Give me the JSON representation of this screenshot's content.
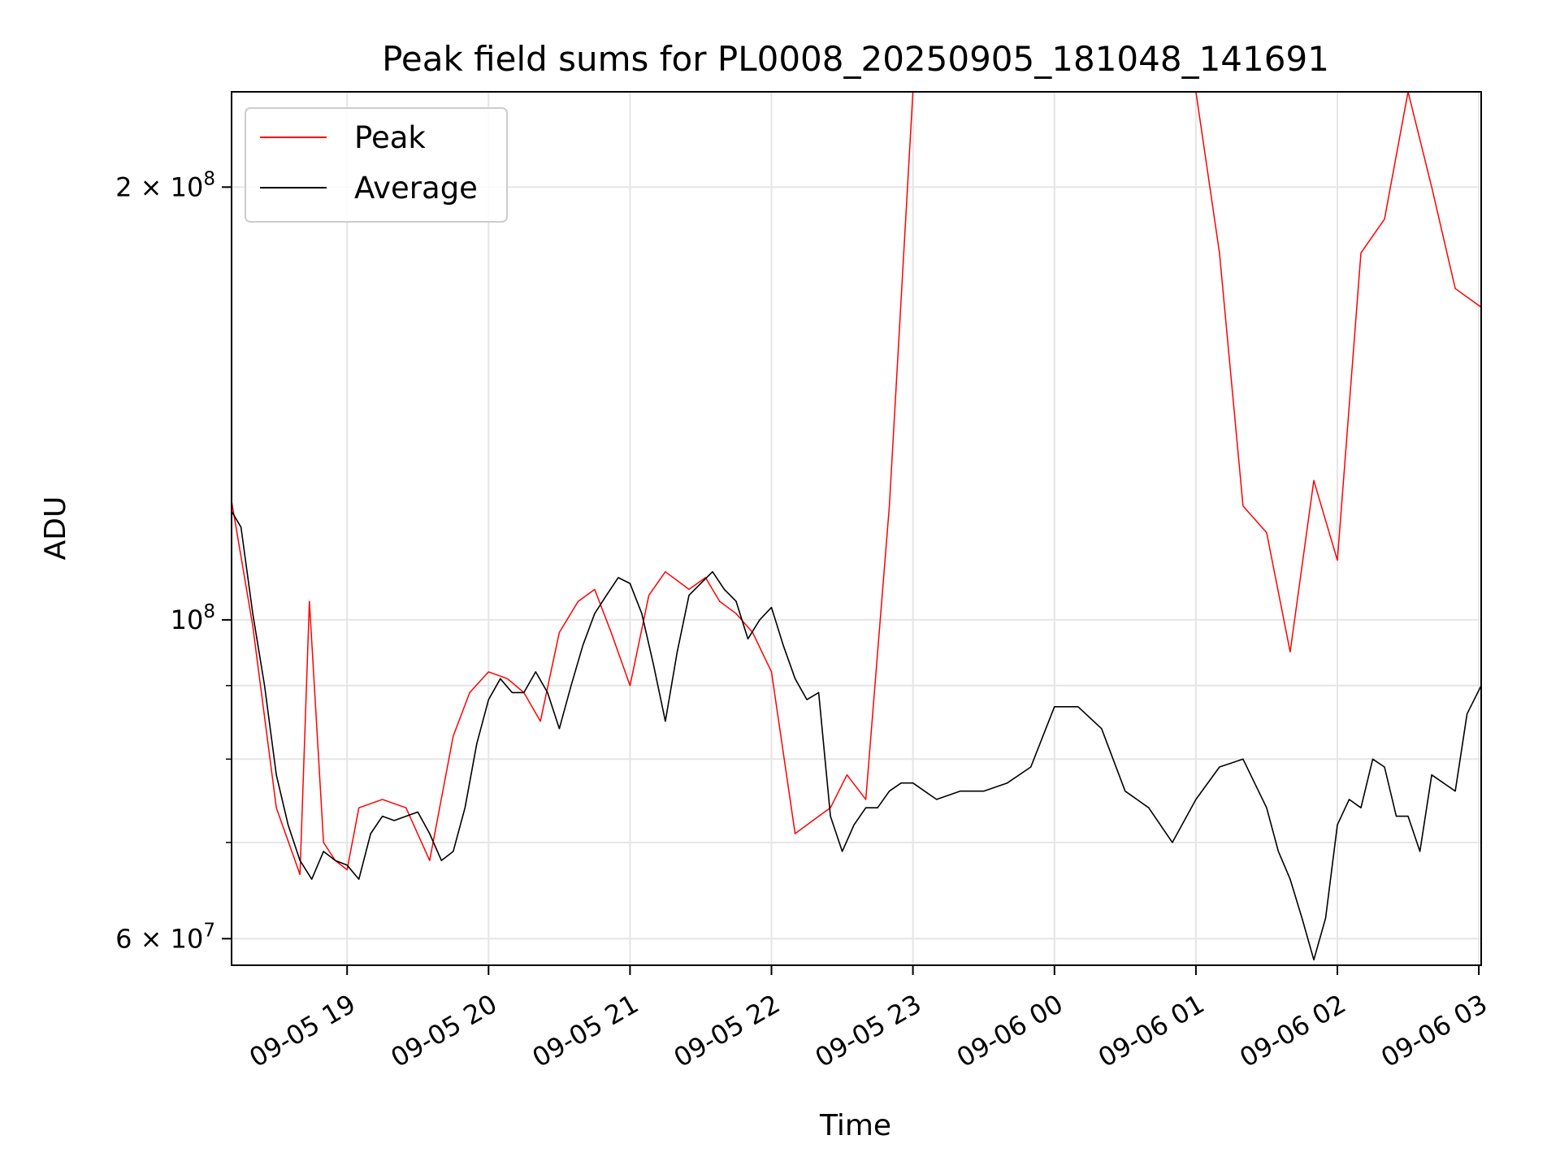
{
  "chart_data": {
    "type": "line",
    "title": "Peak field sums for PL0008_20250905_181048_141691",
    "xlabel": "Time",
    "ylabel": "ADU",
    "yscale": "log",
    "ylim": [
      57500000,
      233000000
    ],
    "xlim": [
      "2025-09-05 18:11",
      "2025-09-06 03:01"
    ],
    "grid": true,
    "legend": {
      "position": "top-left",
      "entries": [
        "Peak",
        "Average"
      ]
    },
    "x_ticks": [
      {
        "value": "2025-09-05 19:00",
        "label": "09-05 19"
      },
      {
        "value": "2025-09-05 20:00",
        "label": "09-05 20"
      },
      {
        "value": "2025-09-05 21:00",
        "label": "09-05 21"
      },
      {
        "value": "2025-09-05 22:00",
        "label": "09-05 22"
      },
      {
        "value": "2025-09-05 23:00",
        "label": "09-05 23"
      },
      {
        "value": "2025-09-06 00:00",
        "label": "09-06 00"
      },
      {
        "value": "2025-09-06 01:00",
        "label": "09-06 01"
      },
      {
        "value": "2025-09-06 02:00",
        "label": "09-06 02"
      },
      {
        "value": "2025-09-06 03:00",
        "label": "09-06 03"
      }
    ],
    "y_major_ticks": [
      {
        "value": 60000000,
        "label_base": "6 × 10",
        "label_exp": "7"
      },
      {
        "value": 100000000,
        "label_base": "10",
        "label_exp": "8"
      },
      {
        "value": 200000000,
        "label_base": "2 × 10",
        "label_exp": "8"
      }
    ],
    "y_minor_gridlines": [
      70000000,
      80000000,
      90000000
    ],
    "series": [
      {
        "name": "Peak",
        "color": "#ff0000",
        "x": [
          "2025-09-05 18:11",
          "2025-09-05 18:20",
          "2025-09-05 18:30",
          "2025-09-05 18:40",
          "2025-09-05 18:44",
          "2025-09-05 18:50",
          "2025-09-05 18:55",
          "2025-09-05 19:00",
          "2025-09-05 19:05",
          "2025-09-05 19:15",
          "2025-09-05 19:25",
          "2025-09-05 19:35",
          "2025-09-05 19:45",
          "2025-09-05 19:52",
          "2025-09-05 20:00",
          "2025-09-05 20:08",
          "2025-09-05 20:15",
          "2025-09-05 20:22",
          "2025-09-05 20:30",
          "2025-09-05 20:38",
          "2025-09-05 20:45",
          "2025-09-05 20:52",
          "2025-09-05 21:00",
          "2025-09-05 21:08",
          "2025-09-05 21:15",
          "2025-09-05 21:25",
          "2025-09-05 21:32",
          "2025-09-05 21:38",
          "2025-09-05 21:45",
          "2025-09-05 21:52",
          "2025-09-05 22:00",
          "2025-09-05 22:10",
          "2025-09-05 22:20",
          "2025-09-05 22:25",
          "2025-09-05 22:32",
          "2025-09-05 22:40",
          "2025-09-05 22:50",
          "2025-09-05 23:00",
          "2025-09-05 23:10",
          "2025-09-05 23:20",
          "2025-09-05 23:30",
          "2025-09-05 23:40",
          "2025-09-05 23:50",
          "2025-09-06 00:00",
          "2025-09-06 00:10",
          "2025-09-06 00:20",
          "2025-09-06 00:30",
          "2025-09-06 00:40",
          "2025-09-06 00:50",
          "2025-09-06 01:00",
          "2025-09-06 01:10",
          "2025-09-06 01:20",
          "2025-09-06 01:30",
          "2025-09-06 01:40",
          "2025-09-06 01:50",
          "2025-09-06 02:00",
          "2025-09-06 02:10",
          "2025-09-06 02:20",
          "2025-09-06 02:30",
          "2025-09-06 02:40",
          "2025-09-06 02:50",
          "2025-09-06 03:01"
        ],
        "values": [
          121000000,
          99000000,
          74000000,
          66500000,
          103000000,
          70000000,
          68000000,
          67000000,
          74000000,
          75000000,
          74000000,
          68000000,
          83000000,
          89000000,
          92000000,
          91000000,
          89000000,
          85000000,
          98000000,
          103000000,
          105000000,
          98000000,
          90000000,
          104000000,
          108000000,
          105000000,
          107000000,
          103000000,
          101000000,
          98000000,
          92000000,
          71000000,
          73000000,
          74000000,
          78000000,
          75000000,
          120000000,
          233000000,
          233000000,
          233000000,
          233000000,
          233000000,
          233000000,
          233000000,
          233000000,
          233000000,
          233000000,
          233000000,
          233000000,
          233000000,
          180000000,
          120000000,
          115000000,
          95000000,
          125000000,
          110000000,
          180000000,
          190000000,
          233000000,
          200000000,
          170000000,
          165000000
        ]
      },
      {
        "name": "Average",
        "color": "#000000",
        "x": [
          "2025-09-05 18:11",
          "2025-09-05 18:15",
          "2025-09-05 18:20",
          "2025-09-05 18:25",
          "2025-09-05 18:30",
          "2025-09-05 18:35",
          "2025-09-05 18:40",
          "2025-09-05 18:45",
          "2025-09-05 18:50",
          "2025-09-05 18:55",
          "2025-09-05 19:00",
          "2025-09-05 19:05",
          "2025-09-05 19:10",
          "2025-09-05 19:15",
          "2025-09-05 19:20",
          "2025-09-05 19:25",
          "2025-09-05 19:30",
          "2025-09-05 19:35",
          "2025-09-05 19:40",
          "2025-09-05 19:45",
          "2025-09-05 19:50",
          "2025-09-05 19:55",
          "2025-09-05 20:00",
          "2025-09-05 20:05",
          "2025-09-05 20:10",
          "2025-09-05 20:15",
          "2025-09-05 20:20",
          "2025-09-05 20:25",
          "2025-09-05 20:30",
          "2025-09-05 20:35",
          "2025-09-05 20:40",
          "2025-09-05 20:45",
          "2025-09-05 20:50",
          "2025-09-05 20:55",
          "2025-09-05 21:00",
          "2025-09-05 21:05",
          "2025-09-05 21:10",
          "2025-09-05 21:15",
          "2025-09-05 21:20",
          "2025-09-05 21:25",
          "2025-09-05 21:30",
          "2025-09-05 21:35",
          "2025-09-05 21:40",
          "2025-09-05 21:45",
          "2025-09-05 21:50",
          "2025-09-05 21:55",
          "2025-09-05 22:00",
          "2025-09-05 22:05",
          "2025-09-05 22:10",
          "2025-09-05 22:15",
          "2025-09-05 22:20",
          "2025-09-05 22:25",
          "2025-09-05 22:30",
          "2025-09-05 22:35",
          "2025-09-05 22:40",
          "2025-09-05 22:45",
          "2025-09-05 22:50",
          "2025-09-05 22:55",
          "2025-09-05 23:00",
          "2025-09-05 23:10",
          "2025-09-05 23:20",
          "2025-09-05 23:30",
          "2025-09-05 23:40",
          "2025-09-05 23:50",
          "2025-09-06 00:00",
          "2025-09-06 00:10",
          "2025-09-06 00:20",
          "2025-09-06 00:30",
          "2025-09-06 00:40",
          "2025-09-06 00:50",
          "2025-09-06 01:00",
          "2025-09-06 01:10",
          "2025-09-06 01:20",
          "2025-09-06 01:30",
          "2025-09-06 01:35",
          "2025-09-06 01:40",
          "2025-09-06 01:45",
          "2025-09-06 01:50",
          "2025-09-06 01:55",
          "2025-09-06 02:00",
          "2025-09-06 02:05",
          "2025-09-06 02:10",
          "2025-09-06 02:15",
          "2025-09-06 02:20",
          "2025-09-06 02:25",
          "2025-09-06 02:30",
          "2025-09-06 02:35",
          "2025-09-06 02:40",
          "2025-09-06 02:45",
          "2025-09-06 02:50",
          "2025-09-06 02:55",
          "2025-09-06 03:01"
        ],
        "values": [
          119000000,
          116000000,
          101000000,
          90000000,
          78000000,
          72000000,
          68000000,
          66000000,
          69000000,
          68000000,
          67500000,
          66000000,
          71000000,
          73000000,
          72500000,
          73000000,
          73500000,
          71000000,
          68000000,
          69000000,
          74000000,
          82000000,
          88000000,
          91000000,
          89000000,
          89000000,
          92000000,
          89000000,
          84000000,
          90000000,
          96000000,
          101000000,
          104000000,
          107000000,
          106000000,
          101000000,
          93000000,
          85000000,
          95000000,
          104000000,
          106000000,
          108000000,
          105000000,
          103000000,
          97000000,
          100000000,
          102000000,
          96000000,
          91000000,
          88000000,
          89000000,
          73000000,
          69000000,
          72000000,
          74000000,
          74000000,
          76000000,
          77000000,
          77000000,
          75000000,
          76000000,
          76000000,
          77000000,
          79000000,
          87000000,
          87000000,
          84000000,
          76000000,
          74000000,
          70000000,
          75000000,
          79000000,
          80000000,
          74000000,
          69000000,
          66000000,
          62000000,
          58000000,
          62000000,
          72000000,
          75000000,
          74000000,
          80000000,
          79000000,
          73000000,
          73000000,
          69000000,
          78000000,
          77000000,
          76000000,
          86000000,
          90000000
        ]
      }
    ]
  }
}
